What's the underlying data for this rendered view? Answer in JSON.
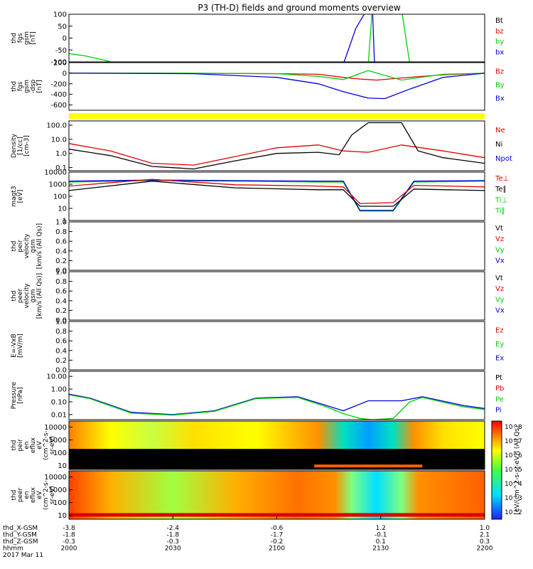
{
  "title": "P3 (TH-D) fields and ground moments overview",
  "colors": {
    "black": "#000000",
    "red": "#e00000",
    "green": "#00d000",
    "blue": "#0000e0",
    "yellow": "#ffff00"
  },
  "chart_data": [
    {
      "type": "line",
      "ylabel": [
        "thd",
        "fgs",
        "gsm",
        "[nT]"
      ],
      "yticks": [
        "100",
        "50",
        "0",
        "-50",
        "-100"
      ],
      "ylim": [
        -100,
        100
      ],
      "legend": [
        {
          "name": "Bt",
          "color": "#000000"
        },
        {
          "name": "bz",
          "color": "#e00000"
        },
        {
          "name": "by",
          "color": "#00d000"
        },
        {
          "name": "bx",
          "color": "#0000e0"
        }
      ],
      "series": [
        {
          "name": "by",
          "color": "#00d000",
          "x": [
            0,
            0.04,
            0.09,
            0.12
          ],
          "y": [
            -65,
            -75,
            -95,
            -110
          ]
        },
        {
          "name": "bx",
          "color": "#0000e0",
          "x": [
            0.66,
            0.69,
            0.72,
            0.73,
            0.735
          ],
          "y": [
            -110,
            40,
            130,
            130,
            -110
          ]
        },
        {
          "name": "by",
          "color": "#00d000",
          "x": [
            0.72,
            0.73,
            0.76,
            0.8,
            0.82
          ],
          "y": [
            -110,
            130,
            130,
            120,
            -110
          ]
        }
      ]
    },
    {
      "type": "line",
      "ylabel": [
        "thd",
        "fgs",
        "gsm",
        "-dsp",
        "[nT]"
      ],
      "yticks": [
        "200",
        "0",
        "-200",
        "-400",
        "-600"
      ],
      "ylim": [
        -700,
        200
      ],
      "legend": [
        {
          "name": "Bz",
          "color": "#e00000"
        },
        {
          "name": "By",
          "color": "#00d000"
        },
        {
          "name": "Bx",
          "color": "#0000e0"
        }
      ],
      "series": [
        {
          "name": "Bz",
          "color": "#e00000",
          "x": [
            0,
            0.2,
            0.4,
            0.5,
            0.6,
            0.66,
            0.7,
            0.74,
            0.8,
            0.9,
            1
          ],
          "y": [
            0,
            0,
            -5,
            -10,
            -20,
            -80,
            -110,
            -130,
            -90,
            -30,
            0
          ]
        },
        {
          "name": "By",
          "color": "#00d000",
          "x": [
            0,
            0.3,
            0.5,
            0.6,
            0.66,
            0.72,
            0.75,
            0.8,
            0.9,
            1
          ],
          "y": [
            0,
            0,
            -10,
            -60,
            -120,
            50,
            -20,
            -130,
            -20,
            0
          ]
        },
        {
          "name": "Bx",
          "color": "#0000e0",
          "x": [
            0,
            0.3,
            0.5,
            0.6,
            0.66,
            0.72,
            0.76,
            0.82,
            0.9,
            1
          ],
          "y": [
            0,
            -10,
            -80,
            -200,
            -350,
            -470,
            -480,
            -300,
            -80,
            0
          ]
        }
      ]
    },
    {
      "type": "line",
      "ylabel": [
        "Density",
        "[1/cc]",
        "[cm-3]"
      ],
      "yticks": [
        "100.0",
        "10.0",
        "1.0",
        "0.1"
      ],
      "ylim": [
        0.06,
        200
      ],
      "yscale": "log",
      "legend": [
        {
          "name": "Ne",
          "color": "#e00000"
        },
        {
          "name": "Ni",
          "color": "#000000"
        },
        {
          "name": "Npot",
          "color": "#0000e0"
        }
      ],
      "series": [
        {
          "name": "Ne",
          "color": "#e00000",
          "x": [
            0,
            0.1,
            0.2,
            0.3,
            0.4,
            0.5,
            0.6,
            0.66,
            0.72,
            0.8,
            0.9,
            1
          ],
          "y": [
            5,
            1.5,
            0.2,
            0.15,
            0.6,
            2.5,
            4,
            1.5,
            1.2,
            4,
            1.5,
            0.5
          ]
        },
        {
          "name": "Ni",
          "color": "#000000",
          "x": [
            0,
            0.1,
            0.2,
            0.3,
            0.4,
            0.5,
            0.6,
            0.65,
            0.68,
            0.72,
            0.8,
            0.84,
            0.9,
            1
          ],
          "y": [
            2,
            0.7,
            0.12,
            0.08,
            0.3,
            1,
            1.2,
            0.8,
            20,
            150,
            150,
            1.5,
            0.5,
            0.2
          ]
        }
      ]
    },
    {
      "type": "line",
      "ylabel": [
        "magt3",
        "[eV]"
      ],
      "yticks": [
        "10000",
        "1000",
        "100",
        "10",
        "1"
      ],
      "ylim": [
        1,
        10000
      ],
      "yscale": "log",
      "legend": [
        {
          "name": "Te⊥",
          "color": "#e00000"
        },
        {
          "name": "Te∥",
          "color": "#000000"
        },
        {
          "name": "Ti⊥",
          "color": "#00d000"
        },
        {
          "name": "Ti∥",
          "color": "#00d000"
        }
      ],
      "series": [
        {
          "name": "Ti",
          "color": "#00d000",
          "x": [
            0,
            0.2,
            0.4,
            0.6,
            0.66,
            0.7,
            0.78,
            0.83,
            1
          ],
          "y": [
            1500,
            2000,
            1800,
            1500,
            1500,
            6,
            6,
            1500,
            1800
          ]
        },
        {
          "name": "Te",
          "color": "#0000e0",
          "x": [
            0,
            0.2,
            0.4,
            0.6,
            0.66,
            0.7,
            0.78,
            0.83,
            1
          ],
          "y": [
            1800,
            2200,
            2000,
            1800,
            1800,
            7,
            7,
            1800,
            2000
          ]
        },
        {
          "name": "Te⊥",
          "color": "#e00000",
          "x": [
            0,
            0.2,
            0.4,
            0.6,
            0.66,
            0.7,
            0.78,
            0.83,
            1
          ],
          "y": [
            700,
            2500,
            900,
            700,
            600,
            25,
            30,
            800,
            600
          ]
        },
        {
          "name": "Te∥",
          "color": "#000000",
          "x": [
            0,
            0.2,
            0.4,
            0.6,
            0.66,
            0.7,
            0.78,
            0.83,
            1
          ],
          "y": [
            300,
            1800,
            500,
            350,
            350,
            15,
            15,
            400,
            300
          ]
        }
      ]
    },
    {
      "type": "line",
      "ylabel": [
        "thd",
        "peir",
        "velocity",
        "gsm",
        "[km/s (All Qs)]"
      ],
      "yticks": [
        "1.0",
        "0.8",
        "0.6",
        "0.4",
        "0.2",
        "0.0"
      ],
      "ylim": [
        0,
        1
      ],
      "legend": [
        {
          "name": "Vt",
          "color": "#000000"
        },
        {
          "name": "Vz",
          "color": "#e00000"
        },
        {
          "name": "Vy",
          "color": "#00d000"
        },
        {
          "name": "Vx",
          "color": "#0000e0"
        }
      ],
      "series": []
    },
    {
      "type": "line",
      "ylabel": [
        "thd",
        "peer",
        "velocity",
        "gsm",
        "[km/s (All Qs)]"
      ],
      "yticks": [
        "1.0",
        "0.8",
        "0.6",
        "0.4",
        "0.2",
        "0.0"
      ],
      "ylim": [
        0,
        1
      ],
      "legend": [
        {
          "name": "Vt",
          "color": "#000000"
        },
        {
          "name": "Vz",
          "color": "#e00000"
        },
        {
          "name": "Vy",
          "color": "#00d000"
        },
        {
          "name": "Vx",
          "color": "#0000e0"
        }
      ],
      "series": []
    },
    {
      "type": "line",
      "ylabel": [
        "E=-VxB",
        "[mV/m]"
      ],
      "yticks": [
        "1.0",
        "0.8",
        "0.6",
        "0.4",
        "0.2",
        "0.0"
      ],
      "ylim": [
        0,
        1
      ],
      "legend": [
        {
          "name": "Ez",
          "color": "#e00000"
        },
        {
          "name": "Ey",
          "color": "#00d000"
        },
        {
          "name": "Ex",
          "color": "#0000e0"
        }
      ],
      "series": []
    },
    {
      "type": "line",
      "ylabel": [
        "Pressure",
        "[nPa]"
      ],
      "yticks": [
        "10.00",
        "1.00",
        "0.10",
        "0.01"
      ],
      "ylim": [
        0.004,
        25
      ],
      "yscale": "log",
      "legend": [
        {
          "name": "Pt",
          "color": "#000000"
        },
        {
          "name": "Pb",
          "color": "#e00000"
        },
        {
          "name": "Pe",
          "color": "#00d000"
        },
        {
          "name": "Pi",
          "color": "#0000e0"
        }
      ],
      "series": [
        {
          "name": "Pi",
          "color": "#0000e0",
          "x": [
            0,
            0.05,
            0.15,
            0.25,
            0.35,
            0.45,
            0.55,
            0.62,
            0.66,
            0.72,
            0.8,
            0.85,
            0.95,
            1
          ],
          "y": [
            0.4,
            0.2,
            0.015,
            0.01,
            0.02,
            0.2,
            0.25,
            0.05,
            0.02,
            0.12,
            0.12,
            0.25,
            0.05,
            0.03
          ]
        },
        {
          "name": "Pe",
          "color": "#00d000",
          "x": [
            0,
            0.05,
            0.15,
            0.25,
            0.35,
            0.45,
            0.55,
            0.62,
            0.66,
            0.7,
            0.73,
            0.78,
            0.82,
            0.85,
            0.95,
            1
          ],
          "y": [
            0.35,
            0.18,
            0.013,
            0.009,
            0.018,
            0.18,
            0.22,
            0.04,
            0.012,
            0.005,
            0.004,
            0.005,
            0.1,
            0.22,
            0.04,
            0.025
          ]
        }
      ]
    },
    {
      "type": "heatmap",
      "ylabel": [
        "thd",
        "peir",
        "en",
        "eflux",
        "eV",
        "(cm^2-s-",
        "sr-eV)"
      ],
      "yticks": [
        "10000",
        "1000",
        "100",
        "10"
      ],
      "ylim": [
        5,
        30000
      ],
      "yscale": "log"
    },
    {
      "type": "heatmap",
      "ylabel": [
        "thd",
        "peer",
        "en",
        "eflux",
        "eV",
        "(cm^2-s-",
        "sr-eV)"
      ],
      "yticks": [
        "10000",
        "1000",
        "100",
        "10"
      ],
      "ylim": [
        5,
        30000
      ],
      "yscale": "log",
      "colorbar": {
        "label": "[eV/(cm^2-s-sr-eV)] (All Qs)",
        "ticks": [
          "10^8",
          "10^7",
          "10^6",
          "10^5",
          "10^4",
          "10^3",
          "10^2"
        ]
      }
    }
  ],
  "xaxis": {
    "ticks": [
      {
        "pos": 0,
        "rows": [
          "-3.8",
          "-1.8",
          "-0.3",
          "2000"
        ]
      },
      {
        "pos": 0.2,
        "rows": [
          "-2.4",
          "-1.8",
          "-0.3",
          "2030"
        ]
      },
      {
        "pos": 0.4,
        "rows": [
          "-0.6",
          "-1.7",
          "-0.2",
          "2100"
        ]
      },
      {
        "pos": 0.6,
        "rows": [
          "1.2",
          "-0.1",
          "0.1",
          "2130"
        ]
      },
      {
        "pos": 0.8,
        "rows": [
          "1.0",
          "2.1",
          "0.3",
          "2200"
        ]
      }
    ],
    "row_labels": [
      "thd_X-GSM",
      "thd_Y-GSM",
      "thd_Z-GSM",
      "hhmm"
    ],
    "date": "2017 Mar 11"
  }
}
